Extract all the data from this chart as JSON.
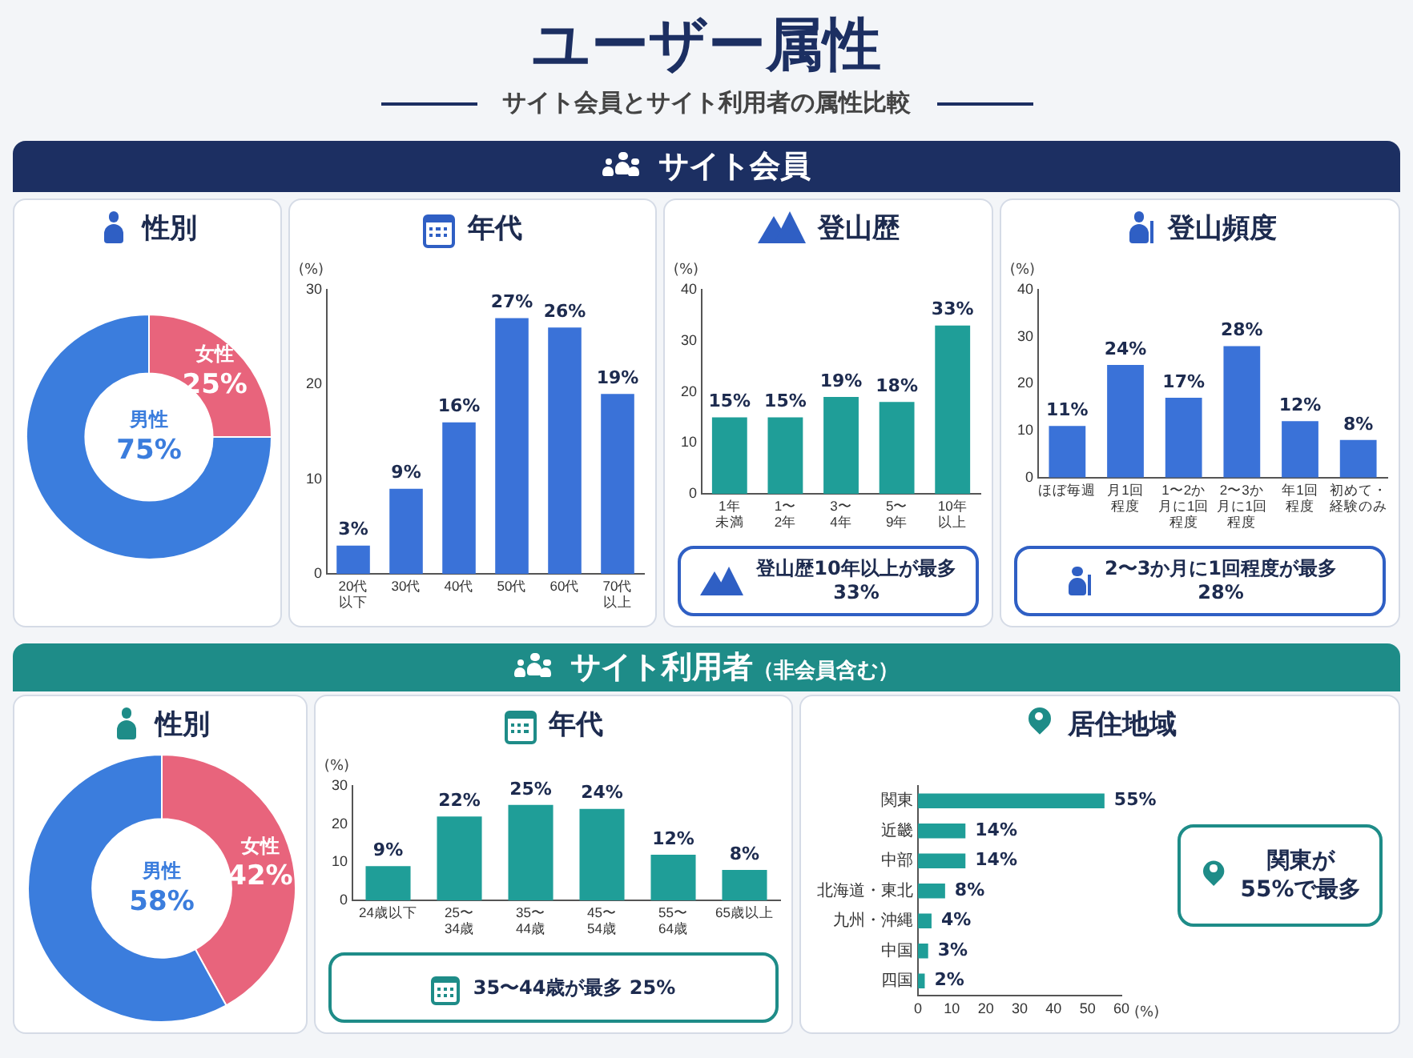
{
  "chart_data": [
    {
      "type": "other",
      "title": "ユーザー属性",
      "subtitle": "サイト会員とサイト利用者の属性比較"
    },
    {
      "type": "other",
      "title": "サイト会員"
    },
    {
      "type": "donut",
      "title": "性別",
      "categories": [
        "女性",
        "男性"
      ],
      "values": [
        25,
        75
      ],
      "colors": [
        "#e8647c",
        "#3b7ddd"
      ],
      "value_labels": [
        "25%",
        "75%"
      ],
      "legend": false
    },
    {
      "type": "bar",
      "title": "年代",
      "ylabel": "(%)",
      "categories": [
        "20代以下",
        "30代",
        "40代",
        "50代",
        "60代",
        "70代以上"
      ],
      "values": [
        3,
        9,
        16,
        27,
        26,
        19
      ],
      "value_labels": [
        "3%",
        "9%",
        "16%",
        "27%",
        "26%",
        "19%"
      ],
      "color": "#3a72d8",
      "ylim": [
        0,
        30
      ],
      "yticks": [
        0,
        10,
        20,
        30
      ],
      "grid": false,
      "legend": false
    },
    {
      "type": "bar",
      "title": "登山歴",
      "ylabel": "(%)",
      "categories": [
        "1年未満",
        "1〜2年",
        "3〜4年",
        "5〜9年",
        "10年以上"
      ],
      "values": [
        15,
        15,
        19,
        18,
        33
      ],
      "value_labels": [
        "15%",
        "15%",
        "19%",
        "18%",
        "33%"
      ],
      "color": "#1f9e98",
      "ylim": [
        0,
        40
      ],
      "yticks": [
        0,
        10,
        20,
        30,
        40
      ],
      "grid": false,
      "legend": false,
      "annotations": [
        "登山歴10年以上が最多\n33%"
      ]
    },
    {
      "type": "bar",
      "title": "登山頻度",
      "ylabel": "(%)",
      "categories": [
        "ほぼ毎週",
        "月1回程度",
        "1〜2か月に1回程度",
        "2〜3か月に1回程度",
        "年1回程度",
        "初めて・経験のみ"
      ],
      "values": [
        11,
        24,
        17,
        28,
        12,
        8
      ],
      "value_labels": [
        "11%",
        "24%",
        "17%",
        "28%",
        "12%",
        "8%"
      ],
      "color": "#3a72d8",
      "ylim": [
        0,
        40
      ],
      "yticks": [
        0,
        10,
        20,
        30,
        40
      ],
      "grid": false,
      "legend": false,
      "annotations": [
        "2〜3か月に1回程度が最多\n28%"
      ]
    },
    {
      "type": "other",
      "title": "サイト利用者",
      "subtitle": "（非会員含む）"
    },
    {
      "type": "donut",
      "title": "性別",
      "categories": [
        "女性",
        "男性"
      ],
      "values": [
        42,
        58
      ],
      "colors": [
        "#e8647c",
        "#3b7ddd"
      ],
      "value_labels": [
        "42%",
        "58%"
      ],
      "legend": false
    },
    {
      "type": "bar",
      "title": "年代",
      "ylabel": "(%)",
      "categories": [
        "24歳以下",
        "25〜34歳",
        "35〜44歳",
        "45〜54歳",
        "55〜64歳",
        "65歳以上"
      ],
      "values": [
        9,
        22,
        25,
        24,
        12,
        8
      ],
      "value_labels": [
        "9%",
        "22%",
        "25%",
        "24%",
        "12%",
        "8%"
      ],
      "color": "#1f9e98",
      "ylim": [
        0,
        30
      ],
      "yticks": [
        0,
        10,
        20,
        30
      ],
      "grid": false,
      "legend": false,
      "annotations": [
        "35〜44歳が最多 25%"
      ]
    },
    {
      "type": "bar",
      "orientation": "horizontal",
      "title": "居住地域",
      "xlabel": "(%)",
      "categories": [
        "関東",
        "近畿",
        "中部",
        "北海道・東北",
        "九州・沖縄",
        "中国",
        "四国"
      ],
      "values": [
        55,
        14,
        14,
        8,
        4,
        3,
        2
      ],
      "value_labels": [
        "55%",
        "14%",
        "14%",
        "8%",
        "4%",
        "3%",
        "2%"
      ],
      "color": "#1f9e98",
      "xlim": [
        0,
        60
      ],
      "xticks": [
        0,
        10,
        20,
        30,
        40,
        50,
        60
      ],
      "grid": false,
      "legend": false,
      "annotations": [
        "関東が\n55%で最多"
      ]
    }
  ]
}
